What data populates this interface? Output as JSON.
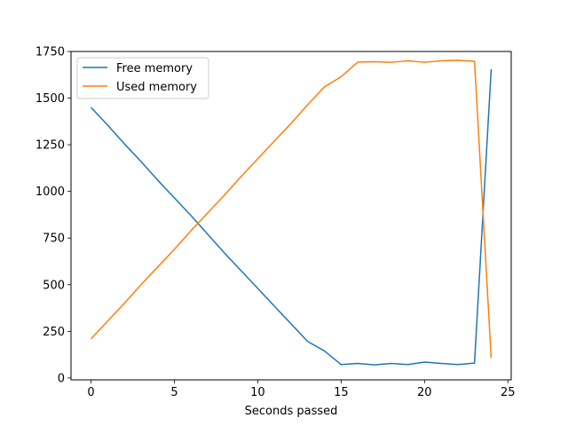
{
  "chart_data": {
    "type": "line",
    "title": "",
    "xlabel": "Seconds passed",
    "ylabel": "",
    "xlim": [
      -1.2,
      25.2
    ],
    "ylim": [
      -10,
      1750
    ],
    "xticks": [
      0,
      5,
      10,
      15,
      20,
      25
    ],
    "yticks": [
      0,
      250,
      500,
      750,
      1000,
      1250,
      1500,
      1750
    ],
    "grid": false,
    "legend": "upper-left",
    "x": [
      0,
      1,
      2,
      3,
      4,
      5,
      6,
      7,
      8,
      9,
      10,
      11,
      12,
      13,
      14,
      15,
      16,
      17,
      18,
      19,
      20,
      21,
      22,
      23,
      24
    ],
    "series": [
      {
        "name": "Free memory",
        "color": "#1f77b4",
        "values": [
          1450,
          1355,
          1255,
          1160,
          1060,
          965,
          870,
          770,
          670,
          575,
          480,
          385,
          290,
          195,
          145,
          72,
          78,
          70,
          78,
          72,
          85,
          78,
          72,
          80,
          1655
        ]
      },
      {
        "name": "Used memory",
        "color": "#ff7f0e",
        "values": [
          210,
          305,
          400,
          500,
          595,
          690,
          790,
          885,
          980,
          1080,
          1175,
          1270,
          1365,
          1465,
          1560,
          1615,
          1693,
          1695,
          1692,
          1700,
          1692,
          1700,
          1703,
          1697,
          107
        ]
      }
    ]
  }
}
